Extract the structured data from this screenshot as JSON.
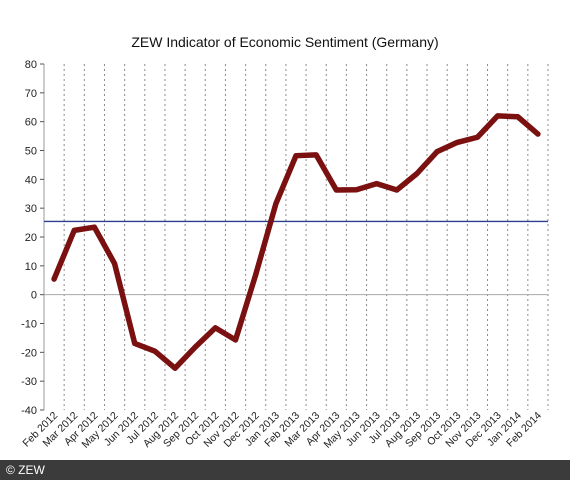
{
  "chart_data": {
    "type": "line",
    "title": "ZEW Indicator of Economic Sentiment (Germany)",
    "categories": [
      "Feb 2012",
      "Mar 2012",
      "Apr 2012",
      "May 2012",
      "Jun 2012",
      "Jul 2012",
      "Aug 2012",
      "Sep 2012",
      "Oct 2012",
      "Nov 2012",
      "Dec 2012",
      "Jan 2013",
      "Feb 2013",
      "Mar 2013",
      "Apr 2013",
      "May 2013",
      "Jun 2013",
      "Jul 2013",
      "Aug 2013",
      "Sep 2013",
      "Oct 2013",
      "Nov 2013",
      "Dec 2013",
      "Jan 2014",
      "Feb 2014"
    ],
    "values": [
      5.4,
      22.3,
      23.4,
      10.8,
      -16.9,
      -19.6,
      -25.5,
      -18.2,
      -11.5,
      -15.7,
      6.9,
      31.5,
      48.2,
      48.5,
      36.3,
      36.4,
      38.5,
      36.3,
      42.0,
      49.6,
      52.8,
      54.6,
      62.0,
      61.7,
      55.7
    ],
    "ylim": [
      -40,
      80
    ],
    "yticks": [
      -40,
      -30,
      -20,
      -10,
      0,
      10,
      20,
      30,
      40,
      50,
      60,
      70,
      80
    ],
    "reference_line": 25.4,
    "grid": "vertical dotted",
    "colors": {
      "series": "#7a1010",
      "reference": "#2a3f8f",
      "zero": "#aaaaaa"
    }
  },
  "footer": {
    "copyright": "© ZEW"
  }
}
